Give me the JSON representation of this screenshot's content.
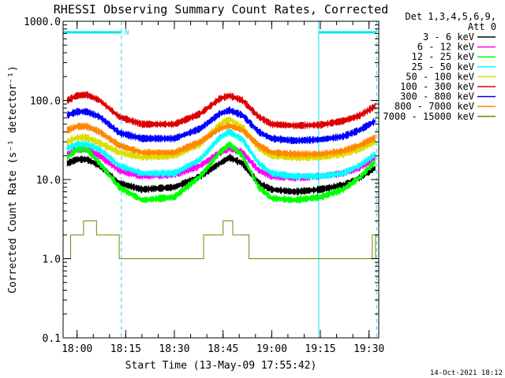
{
  "chart_data": {
    "type": "line",
    "title": "RHESSI Observing Summary Count Rates, Corrected",
    "ylabel": "Corrected Count Rate (s⁻¹ detector⁻¹)",
    "xlabel": "Start Time (13-May-09 17:55:42)",
    "y_scale": "log",
    "ylim": [
      0.1,
      1000
    ],
    "xlim": [
      "17:55:42",
      "19:33:00"
    ],
    "yticks": [
      {
        "value": 1000,
        "label": "1000.0"
      },
      {
        "value": 100,
        "label": "100.0"
      },
      {
        "value": 10,
        "label": "10.0"
      },
      {
        "value": 1,
        "label": "1.0"
      },
      {
        "value": 0.1,
        "label": "0.1"
      }
    ],
    "xticks": [
      "18:00",
      "18:15",
      "18:30",
      "18:45",
      "19:00",
      "19:15",
      "19:30"
    ],
    "legend_header": [
      "Det 1,3,4,5,6,9,",
      "Att 0"
    ],
    "legend_placement": "right",
    "colors": {
      "axes": "#000000",
      "flag_bar": "#00e5ee",
      "flag_lines": "#00e5ee"
    },
    "flags": {
      "saa_or_night_intervals": [
        [
          "17:55:42",
          "18:13:40"
        ],
        [
          "19:14:30",
          "19:32:20"
        ]
      ],
      "flag_label": "N"
    },
    "series": [
      {
        "name": "3 - 6 keV",
        "color": "#000000",
        "x": [
          "17:57",
          "18:00",
          "18:03",
          "18:07",
          "18:13",
          "18:20",
          "18:30",
          "18:38",
          "18:44",
          "18:47",
          "18:51",
          "18:56",
          "19:00",
          "19:07",
          "19:15",
          "19:22",
          "19:27",
          "19:32"
        ],
        "y": [
          16,
          18,
          18,
          15,
          9,
          7.5,
          8,
          11,
          16,
          19,
          16,
          9,
          7.5,
          7,
          7.5,
          8.5,
          10.5,
          14
        ]
      },
      {
        "name": "6 - 12 keV",
        "color": "#ff00ff",
        "x": [
          "17:57",
          "18:00",
          "18:03",
          "18:07",
          "18:13",
          "18:20",
          "18:30",
          "18:38",
          "18:44",
          "18:47",
          "18:51",
          "18:56",
          "19:00",
          "19:07",
          "19:15",
          "19:22",
          "19:27",
          "19:32"
        ],
        "y": [
          21,
          24,
          24,
          20,
          13,
          11,
          11.5,
          15,
          22,
          25,
          22,
          13,
          11,
          10.5,
          11,
          12,
          14,
          19
        ]
      },
      {
        "name": "12 - 25 keV",
        "color": "#00ff00",
        "x": [
          "17:57",
          "18:00",
          "18:03",
          "18:07",
          "18:13",
          "18:20",
          "18:30",
          "18:38",
          "18:44",
          "18:47",
          "18:51",
          "18:56",
          "19:00",
          "19:07",
          "19:15",
          "19:22",
          "19:27",
          "19:32"
        ],
        "y": [
          19,
          24,
          24,
          16,
          8,
          5.5,
          6,
          11,
          22,
          28,
          20,
          8,
          5.8,
          5.5,
          6,
          7.5,
          10.5,
          17
        ]
      },
      {
        "name": "25 - 50 keV",
        "color": "#00ffff",
        "x": [
          "17:57",
          "18:00",
          "18:03",
          "18:07",
          "18:13",
          "18:20",
          "18:30",
          "18:38",
          "18:44",
          "18:47",
          "18:51",
          "18:56",
          "19:00",
          "19:07",
          "19:15",
          "19:22",
          "19:27",
          "19:32"
        ],
        "y": [
          25,
          28,
          28,
          24,
          15,
          12,
          12,
          18,
          34,
          40,
          32,
          16,
          12,
          11,
          11,
          12,
          15,
          21
        ]
      },
      {
        "name": "50 - 100 keV",
        "color": "#dddd00",
        "x": [
          "17:57",
          "18:00",
          "18:03",
          "18:07",
          "18:13",
          "18:20",
          "18:30",
          "18:38",
          "18:44",
          "18:47",
          "18:51",
          "18:56",
          "19:00",
          "19:07",
          "19:15",
          "19:22",
          "19:27",
          "19:32"
        ],
        "y": [
          30,
          34,
          34,
          29,
          22,
          19,
          20,
          28,
          50,
          58,
          46,
          25,
          20,
          19,
          19,
          21,
          24,
          30
        ]
      },
      {
        "name": "100 - 300 keV",
        "color": "#dd0000",
        "x": [
          "17:57",
          "18:00",
          "18:03",
          "18:07",
          "18:13",
          "18:20",
          "18:30",
          "18:38",
          "18:44",
          "18:47",
          "18:51",
          "18:56",
          "19:00",
          "19:07",
          "19:15",
          "19:22",
          "19:27",
          "19:32"
        ],
        "y": [
          100,
          115,
          118,
          100,
          62,
          50,
          50,
          68,
          105,
          115,
          100,
          62,
          50,
          48,
          49,
          55,
          64,
          85
        ]
      },
      {
        "name": "300 - 800 keV",
        "color": "#0000ff",
        "x": [
          "17:57",
          "18:00",
          "18:03",
          "18:07",
          "18:13",
          "18:20",
          "18:30",
          "18:38",
          "18:44",
          "18:47",
          "18:51",
          "18:56",
          "19:00",
          "19:07",
          "19:15",
          "19:22",
          "19:27",
          "19:32"
        ],
        "y": [
          65,
          72,
          72,
          62,
          39,
          33,
          33,
          44,
          68,
          75,
          65,
          40,
          33,
          31,
          32,
          35,
          42,
          55
        ]
      },
      {
        "name": "800 - 7000 keV",
        "color": "#ff8800",
        "x": [
          "17:57",
          "18:00",
          "18:03",
          "18:07",
          "18:13",
          "18:20",
          "18:30",
          "18:38",
          "18:44",
          "18:47",
          "18:51",
          "18:56",
          "19:00",
          "19:07",
          "19:15",
          "19:22",
          "19:27",
          "19:32"
        ],
        "y": [
          42,
          47,
          47,
          40,
          27,
          22,
          22,
          30,
          44,
          48,
          42,
          27,
          22,
          21,
          21,
          23,
          27,
          34
        ]
      },
      {
        "name": "7000 - 15000 keV",
        "color": "#808000",
        "x": [
          "17:57",
          "17:58",
          "18:02",
          "18:06",
          "18:07",
          "18:13",
          "18:20",
          "18:27",
          "18:33",
          "18:37",
          "18:39",
          "18:45",
          "18:48",
          "18:53",
          "18:55",
          "19:01",
          "19:11",
          "19:20",
          "19:27",
          "19:30",
          "19:31",
          "19:32"
        ],
        "y": [
          1,
          2,
          3,
          2,
          2,
          1,
          1,
          1,
          1,
          1,
          2,
          3,
          2,
          1,
          1,
          1,
          1,
          1,
          1,
          1,
          2,
          1
        ]
      }
    ]
  },
  "footer": {
    "generated": "14-Oct-2021 18:12"
  }
}
